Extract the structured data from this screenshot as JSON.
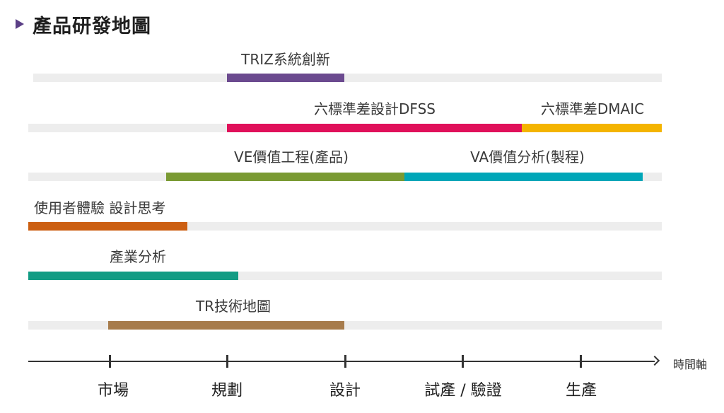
{
  "title": "產品研發地圖",
  "axis": {
    "label": "時間軸",
    "ticks": [
      "市場",
      "規劃",
      "設計",
      "試產 / 驗證",
      "生產"
    ]
  },
  "rows": [
    {
      "bars": [
        {
          "label": "TRIZ系統創新",
          "color": "#6b4a8f"
        }
      ]
    },
    {
      "bars": [
        {
          "label": "六標準差設計DFSS",
          "color": "#e0105a"
        },
        {
          "label": "六標準差DMAIC",
          "color": "#f4b400"
        }
      ]
    },
    {
      "bars": [
        {
          "label": "VE價值工程(產品)",
          "color": "#7a9a33"
        },
        {
          "label": "VA價值分析(製程)",
          "color": "#00a6b8"
        }
      ]
    },
    {
      "bars": [
        {
          "label": "使用者體驗 設計思考",
          "color": "#cc5f12"
        }
      ]
    },
    {
      "bars": [
        {
          "label": "產業分析",
          "color": "#129c84"
        }
      ]
    },
    {
      "bars": [
        {
          "label": "TR技術地圖",
          "color": "#a77c4c"
        }
      ]
    }
  ]
}
